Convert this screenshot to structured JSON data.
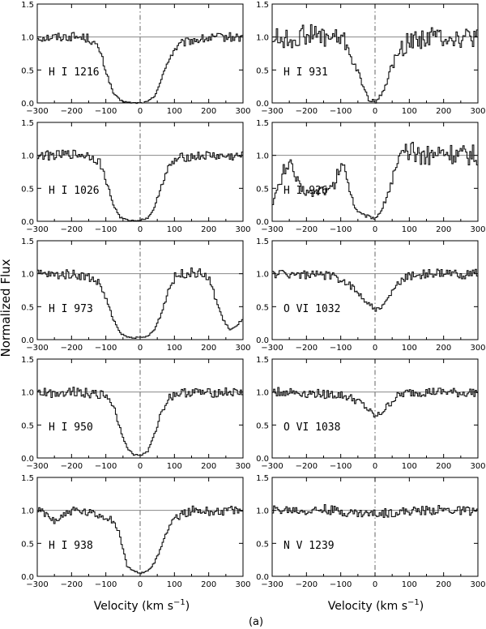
{
  "figure": {
    "ylabel": "Normalized Flux",
    "caption": "(a)",
    "xlabel_parts": {
      "main": "Velocity (km s",
      "sup": "−1",
      "close": ")"
    }
  },
  "chart_data": [
    {
      "type": "line",
      "label": "H I 1216",
      "xlim": [
        -300,
        300
      ],
      "ylim": [
        0,
        1.5
      ],
      "x": [
        -300,
        -250,
        -200,
        -150,
        -120,
        -100,
        -80,
        -60,
        -40,
        -20,
        0,
        20,
        40,
        60,
        80,
        100,
        120,
        150,
        200,
        250,
        300
      ],
      "y": [
        0.99,
        1.0,
        1.01,
        0.98,
        0.8,
        0.45,
        0.15,
        0.04,
        0.01,
        0.0,
        0.0,
        0.02,
        0.1,
        0.35,
        0.65,
        0.82,
        0.9,
        0.95,
        0.98,
        1.0,
        0.99
      ]
    },
    {
      "type": "line",
      "label": "H I 931",
      "xlim": [
        -300,
        300
      ],
      "ylim": [
        0,
        1.5
      ],
      "x": [
        -300,
        -250,
        -200,
        -150,
        -100,
        -80,
        -60,
        -40,
        -20,
        0,
        20,
        40,
        60,
        80,
        100,
        150,
        200,
        250,
        300
      ],
      "y": [
        1.0,
        0.95,
        1.05,
        1.0,
        0.98,
        0.85,
        0.55,
        0.3,
        0.05,
        0.02,
        0.15,
        0.45,
        0.7,
        0.85,
        0.95,
        1.0,
        1.02,
        0.98,
        1.0
      ]
    },
    {
      "type": "line",
      "label": "H I 1026",
      "xlim": [
        -300,
        300
      ],
      "ylim": [
        0,
        1.5
      ],
      "x": [
        -300,
        -250,
        -200,
        -150,
        -120,
        -100,
        -80,
        -60,
        -40,
        -20,
        0,
        20,
        40,
        60,
        80,
        100,
        120,
        150,
        200,
        250,
        300
      ],
      "y": [
        1.0,
        1.0,
        1.02,
        1.0,
        0.9,
        0.6,
        0.25,
        0.06,
        0.02,
        0.01,
        0.02,
        0.05,
        0.2,
        0.55,
        0.8,
        0.92,
        0.97,
        0.98,
        1.0,
        0.98,
        0.99
      ]
    },
    {
      "type": "line",
      "label": "H I 926",
      "xlim": [
        -300,
        300
      ],
      "ylim": [
        0,
        1.5
      ],
      "x": [
        -300,
        -280,
        -260,
        -240,
        -220,
        -200,
        -180,
        -160,
        -140,
        -120,
        -100,
        -80,
        -60,
        -40,
        -20,
        0,
        20,
        40,
        60,
        80,
        100,
        150,
        200,
        250,
        300
      ],
      "y": [
        0.3,
        0.55,
        0.9,
        0.75,
        0.5,
        0.45,
        0.42,
        0.5,
        0.45,
        0.55,
        0.9,
        0.6,
        0.2,
        0.1,
        0.07,
        0.05,
        0.2,
        0.5,
        0.8,
        1.0,
        1.05,
        1.0,
        1.05,
        1.0,
        1.0
      ]
    },
    {
      "type": "line",
      "label": "H I 973",
      "xlim": [
        -300,
        300
      ],
      "ylim": [
        0,
        1.5
      ],
      "x": [
        -300,
        -250,
        -200,
        -150,
        -120,
        -100,
        -80,
        -60,
        -40,
        -20,
        0,
        20,
        40,
        60,
        80,
        100,
        120,
        150,
        180,
        200,
        220,
        240,
        260,
        280,
        300
      ],
      "y": [
        1.0,
        0.98,
        1.0,
        0.95,
        0.85,
        0.6,
        0.3,
        0.1,
        0.04,
        0.03,
        0.03,
        0.05,
        0.15,
        0.4,
        0.75,
        0.95,
        1.0,
        1.02,
        1.0,
        0.9,
        0.6,
        0.3,
        0.15,
        0.2,
        0.35
      ]
    },
    {
      "type": "line",
      "label": "O VI 1032",
      "xlim": [
        -300,
        300
      ],
      "ylim": [
        0,
        1.5
      ],
      "x": [
        -300,
        -250,
        -200,
        -150,
        -100,
        -80,
        -60,
        -40,
        -20,
        0,
        20,
        40,
        60,
        80,
        100,
        150,
        200,
        250,
        300
      ],
      "y": [
        1.0,
        1.0,
        0.98,
        0.98,
        0.92,
        0.85,
        0.75,
        0.65,
        0.55,
        0.45,
        0.5,
        0.65,
        0.82,
        0.92,
        0.97,
        1.0,
        1.0,
        0.99,
        1.0
      ]
    },
    {
      "type": "line",
      "label": "H I 950",
      "xlim": [
        -300,
        300
      ],
      "ylim": [
        0,
        1.5
      ],
      "x": [
        -300,
        -250,
        -200,
        -150,
        -100,
        -80,
        -60,
        -40,
        -20,
        0,
        20,
        40,
        60,
        80,
        100,
        150,
        200,
        250,
        300
      ],
      "y": [
        1.0,
        0.98,
        1.02,
        0.98,
        0.95,
        0.8,
        0.45,
        0.15,
        0.05,
        0.04,
        0.1,
        0.35,
        0.7,
        0.9,
        0.97,
        1.0,
        0.98,
        1.0,
        0.98
      ]
    },
    {
      "type": "line",
      "label": "O VI 1038",
      "xlim": [
        -300,
        300
      ],
      "ylim": [
        0,
        1.5
      ],
      "x": [
        -300,
        -250,
        -200,
        -150,
        -100,
        -80,
        -60,
        -40,
        -20,
        0,
        20,
        40,
        60,
        80,
        100,
        150,
        200,
        250,
        300
      ],
      "y": [
        1.0,
        1.0,
        0.98,
        0.97,
        0.95,
        0.92,
        0.88,
        0.82,
        0.72,
        0.62,
        0.7,
        0.82,
        0.92,
        0.97,
        0.99,
        1.0,
        1.0,
        0.98,
        1.0
      ]
    },
    {
      "type": "line",
      "label": "H I 938",
      "xlim": [
        -300,
        300
      ],
      "ylim": [
        0,
        1.5
      ],
      "x": [
        -300,
        -250,
        -200,
        -150,
        -100,
        -80,
        -60,
        -40,
        -20,
        0,
        20,
        40,
        60,
        80,
        100,
        150,
        200,
        250,
        300
      ],
      "y": [
        1.0,
        0.85,
        1.0,
        0.95,
        0.9,
        0.85,
        0.6,
        0.15,
        0.08,
        0.05,
        0.08,
        0.2,
        0.45,
        0.75,
        0.9,
        1.0,
        0.98,
        1.0,
        0.98
      ]
    },
    {
      "type": "line",
      "label": "N V 1239",
      "xlim": [
        -300,
        300
      ],
      "ylim": [
        0,
        1.5
      ],
      "x": [
        -300,
        -250,
        -200,
        -150,
        -100,
        -50,
        0,
        50,
        100,
        150,
        200,
        250,
        300
      ],
      "y": [
        1.0,
        1.01,
        0.99,
        1.02,
        0.98,
        0.96,
        0.95,
        0.97,
        0.99,
        1.0,
        1.01,
        0.99,
        1.0
      ]
    }
  ],
  "axes": {
    "x_ticks": [
      "−300",
      "−200",
      "−100",
      "0",
      "100",
      "200",
      "300"
    ],
    "y_ticks": [
      "0.0",
      "0.5",
      "1.0",
      "1.5"
    ]
  }
}
